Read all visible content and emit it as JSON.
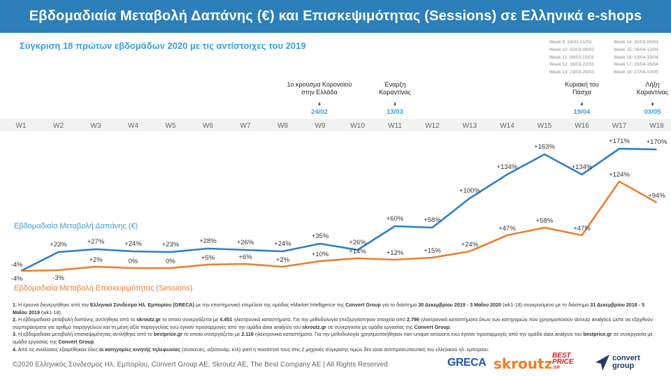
{
  "header": {
    "title": "Εβδομαδιαία Μεταβολή Δαπάνης (€) και Επισκεψιμότητας (Sessions) σε Ελληνικά e-shops"
  },
  "subtitle": "Σύγκριση 18 πρώτων εβδομάδων 2020 με τις αντίστοιχες του 2019",
  "week_legend": {
    "col1": [
      "Week 9: 24/02-01/03",
      "Week 10: 02/03-08/03",
      "Week 11: 09/03-15/03",
      "Week 12: 16/03-22/03",
      "Week 13: 23/03-29/03"
    ],
    "col2": [
      "Week 14: 30/03-05/04",
      "Week 15: 06/04-12/04",
      "Week 16: 13/04-19/04",
      "Week 17: 20/04-26/04",
      "Week 18: 27/04-03/05"
    ]
  },
  "chart_data": {
    "type": "line",
    "categories": [
      "W1",
      "W2",
      "W3",
      "W4",
      "W5",
      "W6",
      "W7",
      "W8",
      "W9",
      "W10",
      "W11",
      "W12",
      "W13",
      "W14",
      "W15",
      "W16",
      "W17",
      "W18"
    ],
    "series": [
      {
        "name": "Εβδομαδιαία Μεταβολή Δαπάνης (€)",
        "color": "#2f7fc1",
        "values": [
          -4,
          23,
          27,
          24,
          23,
          28,
          26,
          24,
          35,
          26,
          60,
          58,
          100,
          134,
          163,
          134,
          171,
          170
        ],
        "labels": [
          "-4%",
          "+23%",
          "+27%",
          "+24%",
          "+23%",
          "+28%",
          "+26%",
          "+24%",
          "+35%",
          "+26%",
          "+60%",
          "+58%",
          "+100%",
          "+134%",
          "+163%",
          "+134%",
          "+171%",
          "+170%"
        ]
      },
      {
        "name": "Εβδομαδιαία Μεταβολή Επισκεψιμότητας (Sessions)",
        "color": "#ed7d31",
        "values": [
          -4,
          -3,
          2,
          0,
          0,
          5,
          6,
          2,
          10,
          14,
          12,
          15,
          24,
          47,
          58,
          47,
          124,
          94
        ],
        "labels": [
          "-4%",
          "-3%",
          "+2%",
          "0%",
          "0%",
          "+5%",
          "+6%",
          "+2%",
          "+10%",
          "+14%",
          "+12%",
          "+15%",
          "+24%",
          "+47%",
          "+58%",
          "+47%",
          "+124%",
          "+94%"
        ]
      }
    ],
    "annotations": [
      {
        "week": "W9",
        "text_lines": [
          "1ο κρούσμα Κορονοϊού",
          "στην Ελλάδα"
        ],
        "date": "24/02"
      },
      {
        "week": "W11",
        "text_lines": [
          "Έναρξη",
          "Καραντίνας"
        ],
        "date": "13/03"
      },
      {
        "week": "W16",
        "text_lines": [
          "Κυριακή του",
          "Πάσχα"
        ],
        "date": "19/04"
      },
      {
        "week": "W18",
        "text_lines": [
          "Λήξη",
          "Καραντίνας"
        ],
        "date": "03/05"
      }
    ],
    "colors": {
      "spend": "#2f7fc1",
      "sessions": "#ed7d31",
      "accent": "#3a9fd8",
      "header_bg": "#2c7fb8"
    }
  },
  "notes": [
    {
      "num": "1.",
      "parts": [
        {
          "t": " Η έρευνα διενεργήθηκε από τον ",
          "b": false
        },
        {
          "t": "Ελληνικό Σύνδεσμο Ηλ. Εμπορίου (GRECA)",
          "b": true
        },
        {
          "t": " με την επιστημονική επιμέλεια της ομάδας eMarket Intelligence της ",
          "b": false
        },
        {
          "t": "Convert Group",
          "b": true
        },
        {
          "t": " για το διάστημα ",
          "b": false
        },
        {
          "t": "30 Δεκεμβρίου 2019 - 3 Μαΐου 2020",
          "b": true
        },
        {
          "t": " (wk1-18) συγκρινόμενο με το διάστημα ",
          "b": false
        },
        {
          "t": "31 Δεκεμβρίου 2018 - 5 Μαΐου 2019",
          "b": true
        },
        {
          "t": " (wk1-18).",
          "b": false
        }
      ]
    },
    {
      "num": "2.",
      "parts": [
        {
          "t": " Η εβδομαδιαία μεταβολή δαπάνης αντλήθηκε από το ",
          "b": false
        },
        {
          "t": "skroutz.gr",
          "b": true
        },
        {
          "t": " το οποίο συνεργάζεται με ",
          "b": false
        },
        {
          "t": "4.451",
          "b": true
        },
        {
          "t": " ηλεκτρονικά καταστήματα. Για την μεθοδολογία επεξεργάστηκαν στοιχεία από ",
          "b": false
        },
        {
          "t": "2.796",
          "b": true
        },
        {
          "t": " ηλεκτρονικά καταστήματα όλων των κατηγοριών που χρησιμοποιούν skroutz analytics ώστε να εξαχθούν συμπεράσματα για αριθμό παραγγελιών και τη μέση αξία παραγγελίας ενώ έγιναν προσαρμογές από την ομάδα data analysis του ",
          "b": false
        },
        {
          "t": "skroutz.gr",
          "b": true
        },
        {
          "t": " σε συνεργασία με ομάδα εργασίας της ",
          "b": false
        },
        {
          "t": "Convert Group",
          "b": true
        },
        {
          "t": ".",
          "b": false
        }
      ]
    },
    {
      "num": "3.",
      "parts": [
        {
          "t": " Η εβδομαδιαία μεταβολή επισκεψιμότητας αντλήθηκε από το ",
          "b": false
        },
        {
          "t": "bestprice.gr",
          "b": true
        },
        {
          "t": " το οποίο συνεργάζεται με ",
          "b": false
        },
        {
          "t": "2.116",
          "b": true
        },
        {
          "t": " ηλεκτρονικά καταστήματα. Για την μεθοδολογία χρησιμοποιήθηκαν non-unique sessions ενώ έγιναν προσαρμογές από την ομάδα data analysis του ",
          "b": false
        },
        {
          "t": "bestprice.gr",
          "b": true
        },
        {
          "t": " σε συνεργασία με ομάδα εργασίας της ",
          "b": false
        },
        {
          "t": "Convert Group",
          "b": true
        },
        {
          "t": ".",
          "b": false
        }
      ]
    },
    {
      "num": "4.",
      "parts": [
        {
          "t": " Από τις αναλύσεις εξαιρέθηκαν όλες ",
          "b": false
        },
        {
          "t": "οι κατηγορίες κινητής τηλεφωνίας",
          "b": true
        },
        {
          "t": " (συσκευές, αξεσουάρ, κτλ) γιατί η ποσότητά τους στις 2 μηχανές σύγκρισης τιμών δεν είναι αντιπροσωπευτική του ελληνικού ηλ. εμπορίου.",
          "b": false
        }
      ]
    }
  ],
  "footer": "©2020 Ελληνικός Σύνδεσμος Ηλ. Εμπορίου, Convert Group AE, Skroutz AE, The Best Company AE | All Rights Reserved",
  "logos": {
    "greca": "GRECA",
    "skroutz": "skroutz",
    "best_line1": "BEST",
    "best_line2": "PRICE",
    "best_line3": ".GR",
    "convert_line1": "convert",
    "convert_line2": "group"
  }
}
